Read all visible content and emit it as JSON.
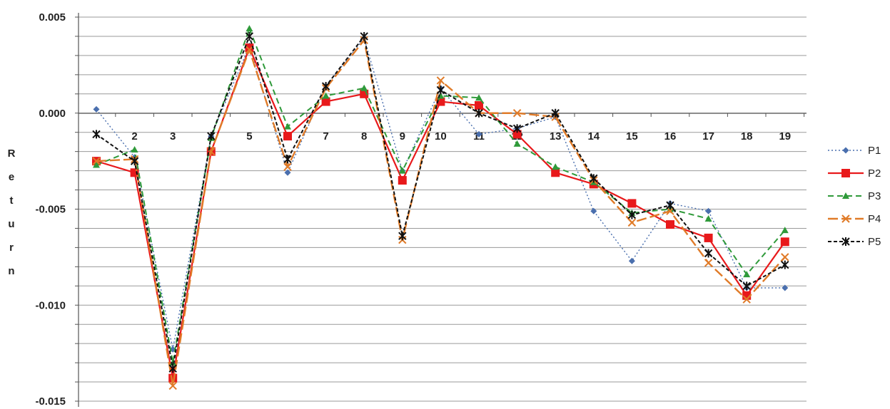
{
  "chart_data": {
    "type": "line",
    "title": "",
    "xlabel": "",
    "ylabel": "Return",
    "ylim": [
      -0.015,
      0.005
    ],
    "y_ticks": [
      0.005,
      0.0,
      -0.005,
      -0.01,
      -0.015
    ],
    "y_tick_labels": [
      "0.005",
      "0.000",
      "-0.005",
      "-0.010",
      "-0.015"
    ],
    "x": [
      1,
      2,
      3,
      4,
      5,
      6,
      7,
      8,
      9,
      10,
      11,
      12,
      13,
      14,
      15,
      16,
      17,
      18,
      19
    ],
    "x_tick_labels": [
      "2",
      "3",
      "4",
      "5",
      "6",
      "7",
      "8",
      "9",
      "10",
      "11",
      "12",
      "13",
      "14",
      "15",
      "16",
      "17",
      "18",
      "19"
    ],
    "grid": true,
    "legend_position": "right",
    "series": [
      {
        "name": "P1",
        "color": "#4a6fae",
        "dash": "2,3",
        "marker": "diamond",
        "values": [
          0.0002,
          -0.0023,
          -0.0123,
          -0.0012,
          0.0035,
          -0.0031,
          0.0014,
          0.0039,
          -0.003,
          0.0013,
          -0.0011,
          -0.0008,
          -0.0002,
          -0.0051,
          -0.0077,
          -0.0047,
          -0.0051,
          -0.0091,
          -0.0091
        ]
      },
      {
        "name": "P2",
        "color": "#e8191b",
        "dash": "",
        "marker": "square",
        "values": [
          -0.0025,
          -0.0031,
          -0.0138,
          -0.002,
          0.0034,
          -0.0012,
          0.0006,
          0.001,
          -0.0035,
          0.0006,
          0.0004,
          -0.0011,
          -0.0031,
          -0.0037,
          -0.0047,
          -0.0058,
          -0.0065,
          -0.0095,
          -0.0067
        ]
      },
      {
        "name": "P3",
        "color": "#2f9a3a",
        "dash": "8,5",
        "marker": "triangle",
        "values": [
          -0.0027,
          -0.0019,
          -0.013,
          -0.0013,
          0.0044,
          -0.0007,
          0.0009,
          0.0013,
          -0.003,
          0.0009,
          0.0008,
          -0.0016,
          -0.0028,
          -0.0036,
          -0.0052,
          -0.005,
          -0.0055,
          -0.0084,
          -0.0061
        ]
      },
      {
        "name": "P4",
        "color": "#e07b28",
        "dash": "14,5",
        "marker": "x",
        "values": [
          -0.0025,
          -0.0024,
          -0.0142,
          -0.002,
          0.0033,
          -0.0028,
          0.0013,
          0.0038,
          -0.0066,
          0.0017,
          0.0,
          0.0,
          -0.0002,
          -0.0035,
          -0.0057,
          -0.0051,
          -0.0078,
          -0.0097,
          -0.0075
        ]
      },
      {
        "name": "P5",
        "color": "#111111",
        "dash": "5,3",
        "marker": "star",
        "values": [
          -0.0011,
          -0.0025,
          -0.0133,
          -0.0012,
          0.004,
          -0.0024,
          0.0014,
          0.004,
          -0.0064,
          0.0012,
          0.0,
          -0.0008,
          0.0,
          -0.0034,
          -0.0053,
          -0.0048,
          -0.0073,
          -0.009,
          -0.0079
        ]
      }
    ]
  }
}
